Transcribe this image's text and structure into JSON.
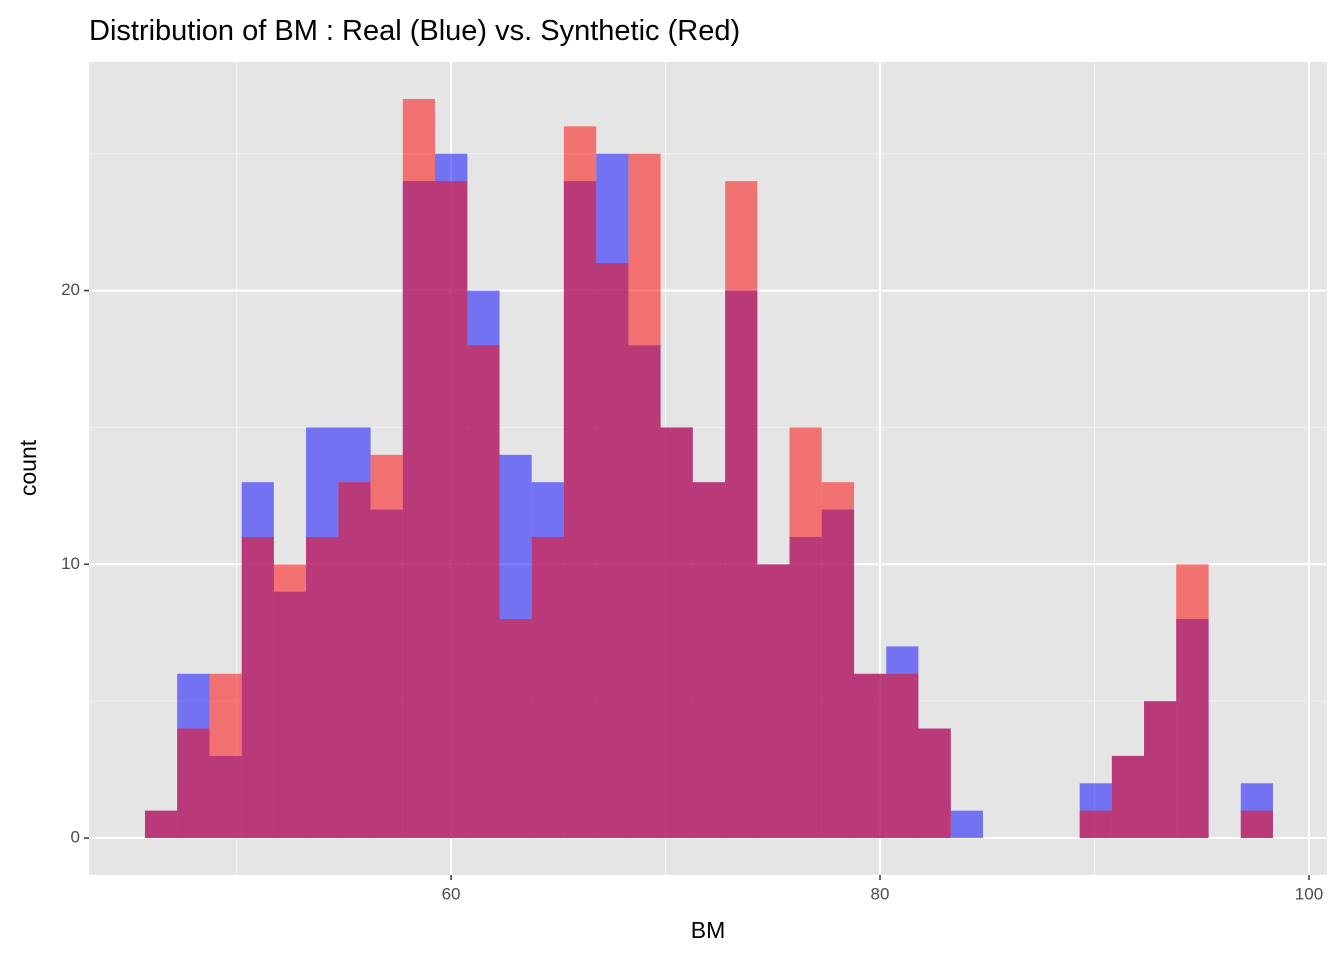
{
  "chart_data": {
    "type": "histogram",
    "title": "Distribution of BM : Real (Blue) vs. Synthetic (Red)",
    "x_label": "BM",
    "y_label": "count",
    "bins": [
      45.73,
      47.23,
      48.74,
      50.24,
      51.74,
      53.24,
      54.75,
      56.25,
      57.75,
      59.25,
      60.76,
      62.26,
      63.76,
      65.26,
      66.77,
      68.27,
      69.77,
      71.27,
      72.78,
      74.28,
      75.78,
      77.28,
      78.79,
      80.29,
      81.79,
      83.3,
      84.8,
      86.3,
      87.8,
      89.31,
      90.81,
      92.31,
      93.81,
      95.32,
      96.82,
      98.32
    ],
    "series": [
      {
        "color": "#0000ff",
        "opacity": 0.5,
        "values": [
          1,
          6,
          3,
          13,
          9,
          15,
          15,
          12,
          24,
          25,
          20,
          14,
          13,
          24,
          25,
          18,
          15,
          13,
          20,
          10,
          11,
          12,
          6,
          7,
          4,
          1,
          0,
          0,
          0,
          2,
          3,
          5,
          8,
          0,
          2
        ]
      },
      {
        "color": "#ff0000",
        "opacity": 0.5,
        "values": [
          1,
          4,
          6,
          11,
          10,
          11,
          13,
          14,
          27,
          24,
          18,
          8,
          11,
          26,
          21,
          25,
          15,
          13,
          24,
          10,
          15,
          13,
          6,
          6,
          4,
          0,
          0,
          0,
          0,
          1,
          3,
          5,
          10,
          0,
          1
        ]
      }
    ],
    "xlim": [
      43.12,
      100.84
    ],
    "xticks": [
      60,
      80,
      100
    ],
    "ylim": [
      -1.35,
      28.35
    ],
    "yticks": [
      0,
      10,
      20
    ],
    "grid": true
  }
}
